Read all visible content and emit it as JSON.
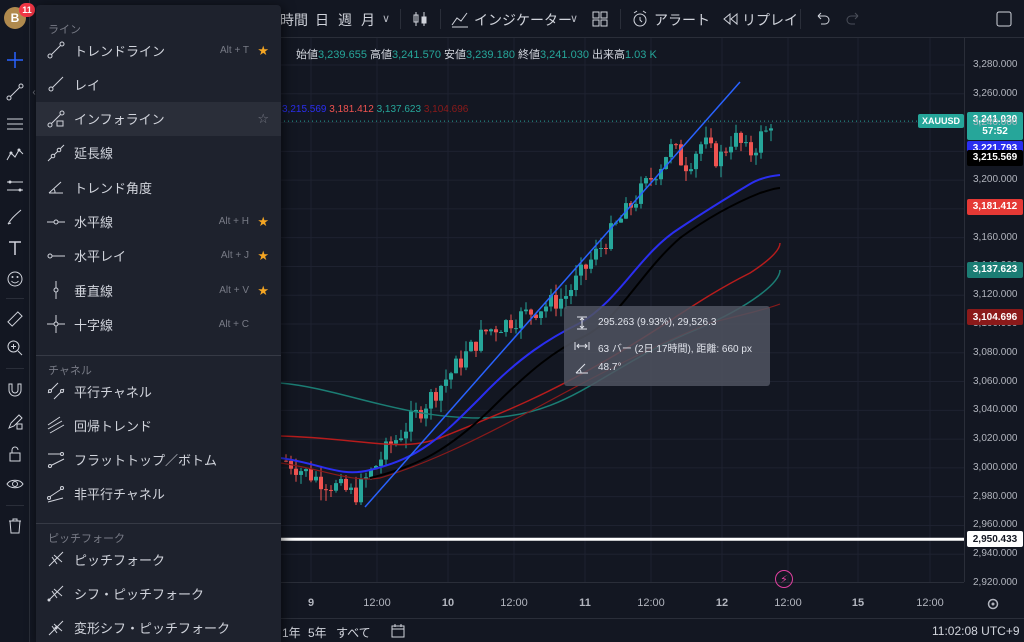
{
  "user": {
    "avatar_letter": "B",
    "notifications": "11"
  },
  "top_toolbar": {
    "timeframes": [
      "時間",
      "日",
      "週",
      "月"
    ],
    "indicators_label": "インジケーター",
    "alert_label": "アラート",
    "replay_label": "リプレイ"
  },
  "drawing_menu": {
    "sections": [
      {
        "title": "ライン",
        "items": [
          {
            "label": "トレンドライン",
            "shortcut": "Alt + T",
            "favorite": true,
            "icon": "trend-line-icon"
          },
          {
            "label": "レイ",
            "shortcut": "",
            "favorite": false,
            "icon": "ray-icon"
          },
          {
            "label": "インフォライン",
            "shortcut": "",
            "favorite": false,
            "icon": "info-line-icon"
          },
          {
            "label": "延長線",
            "shortcut": "",
            "favorite": false,
            "icon": "extended-line-icon"
          },
          {
            "label": "トレンド角度",
            "shortcut": "",
            "favorite": false,
            "icon": "trend-angle-icon"
          },
          {
            "label": "水平線",
            "shortcut": "Alt + H",
            "favorite": true,
            "icon": "horizontal-line-icon"
          },
          {
            "label": "水平レイ",
            "shortcut": "Alt + J",
            "favorite": true,
            "icon": "horizontal-ray-icon"
          },
          {
            "label": "垂直線",
            "shortcut": "Alt + V",
            "favorite": true,
            "icon": "vertical-line-icon"
          },
          {
            "label": "十字線",
            "shortcut": "Alt + C",
            "favorite": false,
            "icon": "cross-line-icon"
          }
        ]
      },
      {
        "title": "チャネル",
        "items": [
          {
            "label": "平行チャネル",
            "icon": "parallel-channel-icon"
          },
          {
            "label": "回帰トレンド",
            "icon": "regression-trend-icon"
          },
          {
            "label": "フラットトップ／ボトム",
            "icon": "flat-top-bottom-icon"
          },
          {
            "label": "非平行チャネル",
            "icon": "disjoint-channel-icon"
          }
        ]
      },
      {
        "title": "ピッチフォーク",
        "items": [
          {
            "label": "ピッチフォーク",
            "icon": "pitchfork-icon"
          },
          {
            "label": "シフ・ピッチフォーク",
            "icon": "schiff-pitchfork-icon"
          },
          {
            "label": "変形シフ・ピッチフォーク",
            "icon": "modified-schiff-pitchfork-icon"
          }
        ]
      }
    ]
  },
  "legend": {
    "open_label": "始値",
    "open": "3,239.655",
    "high_label": "高値",
    "high": "3,241.570",
    "low_label": "安値",
    "low": "3,239.180",
    "close_label": "終値",
    "close": "3,241.030",
    "volume_label": "出来高",
    "volume": "1.03 K",
    "ma_values": [
      "3,215.569",
      "3,181.412",
      "3,137.623",
      "3,104.696"
    ]
  },
  "measure_tooltip": {
    "price_line": "295.263 (9.93%), 29,526.3",
    "bars_line": "63 バー (2日 17時間), 距離: 660 px",
    "angle_line": "48.7°"
  },
  "price_axis": {
    "ticks": [
      "3,280.000",
      "3,260.000",
      "3,240.000",
      "3,220.000",
      "3,200.000",
      "3,180.000",
      "3,160.000",
      "3,140.000",
      "3,120.000",
      "3,100.000",
      "3,080.000",
      "3,060.000",
      "3,040.000",
      "3,020.000",
      "3,000.000",
      "2,980.000",
      "2,960.000",
      "2,940.000",
      "2,920.000"
    ],
    "symbol": "XAUUSD",
    "last_price": "3,241.030",
    "countdown": "57:52",
    "tags": [
      {
        "value": "3,221.793",
        "bg": "#2a2ef0",
        "fg": "#ffffff"
      },
      {
        "value": "3,215.569",
        "bg": "#000000",
        "fg": "#ffffff"
      },
      {
        "value": "3,181.412",
        "bg": "#e53935",
        "fg": "#ffffff"
      },
      {
        "value": "3,137.623",
        "bg": "#1b7d74",
        "fg": "#ffffff"
      },
      {
        "value": "3,104.696",
        "bg": "#8b1a1a",
        "fg": "#ffffff"
      },
      {
        "value": "2,950.433",
        "bg": "#ffffff",
        "fg": "#131722"
      }
    ]
  },
  "time_axis": {
    "ticks": [
      "9",
      "12:00",
      "10",
      "12:00",
      "11",
      "12:00",
      "12",
      "12:00",
      "15",
      "12:00"
    ]
  },
  "bottom_bar": {
    "ranges": [
      "1年",
      "5年",
      "すべて"
    ],
    "clock": "11:02:08 UTC+9"
  },
  "colors": {
    "up": "#26a69a",
    "down": "#ef5350",
    "background": "#131722",
    "panel": "#1e222d",
    "favorite_star": "#f5a623"
  }
}
